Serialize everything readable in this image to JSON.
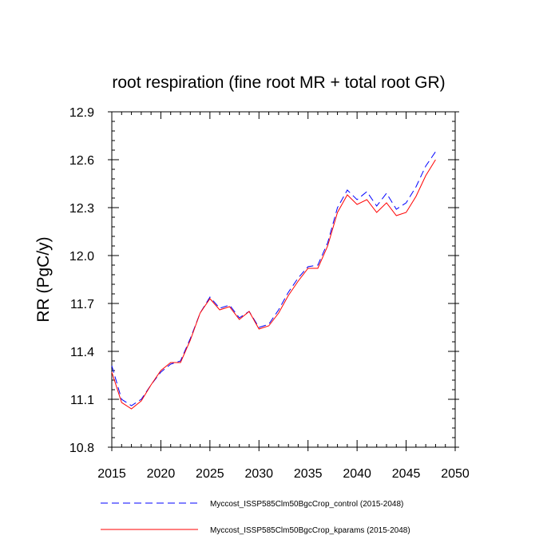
{
  "chart_data": {
    "type": "line",
    "title": "root respiration (fine root MR + total root GR)",
    "xlabel": "",
    "ylabel": "RR  (PgC/y)",
    "xlim": [
      2015,
      2050
    ],
    "ylim": [
      10.8,
      12.9
    ],
    "x_ticks": [
      "2015",
      "2020",
      "2025",
      "2030",
      "2035",
      "2040",
      "2045",
      "2050"
    ],
    "y_ticks": [
      "10.8",
      "11.1",
      "11.4",
      "11.7",
      "12.0",
      "12.3",
      "12.6",
      "12.9"
    ],
    "grid": false,
    "legend_position": "bottom",
    "x": [
      2015,
      2016,
      2017,
      2018,
      2019,
      2020,
      2021,
      2022,
      2023,
      2024,
      2025,
      2026,
      2027,
      2028,
      2029,
      2030,
      2031,
      2032,
      2033,
      2034,
      2035,
      2036,
      2037,
      2038,
      2039,
      2040,
      2041,
      2042,
      2043,
      2044,
      2045,
      2046,
      2047,
      2048
    ],
    "series": [
      {
        "name": "Myccost_ISSP585Clm50BgcCrop_control (2015-2048)",
        "color": "#0000ff",
        "style": "dashed",
        "values": [
          11.31,
          11.1,
          11.06,
          11.1,
          11.19,
          11.27,
          11.32,
          11.34,
          11.48,
          11.64,
          11.74,
          11.67,
          11.69,
          11.61,
          11.65,
          11.55,
          11.57,
          11.66,
          11.77,
          11.86,
          11.93,
          11.94,
          12.08,
          12.3,
          12.41,
          12.35,
          12.4,
          12.31,
          12.39,
          12.29,
          12.33,
          12.43,
          12.56,
          12.65
        ]
      },
      {
        "name": "Myccost_ISSP585Clm50BgcCrop_kparams (2015-2048)",
        "color": "#ff0000",
        "style": "solid",
        "values": [
          11.27,
          11.08,
          11.04,
          11.09,
          11.19,
          11.28,
          11.33,
          11.33,
          11.47,
          11.64,
          11.73,
          11.66,
          11.68,
          11.6,
          11.65,
          11.54,
          11.56,
          11.64,
          11.75,
          11.84,
          11.92,
          11.92,
          12.06,
          12.27,
          12.38,
          12.32,
          12.35,
          12.27,
          12.33,
          12.25,
          12.27,
          12.37,
          12.5,
          12.6
        ]
      }
    ]
  }
}
